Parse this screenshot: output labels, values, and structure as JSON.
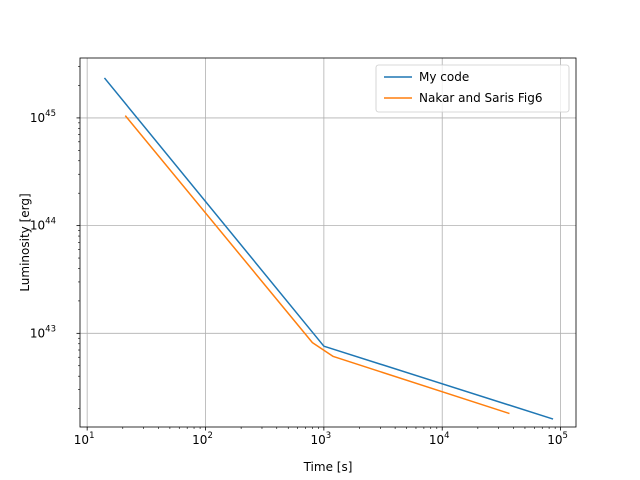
{
  "chart_data": {
    "type": "line",
    "xlabel": "Time [s]",
    "ylabel": "Luminosity [erg]",
    "xscale": "log",
    "yscale": "log",
    "xlim": [
      8.7,
      135000
    ],
    "ylim": [
      1.35e+42,
      3.6e+45
    ],
    "grid": true,
    "legend_position": "top-right",
    "xticks": [
      {
        "value": 10,
        "base": "10",
        "exp": "1"
      },
      {
        "value": 100,
        "base": "10",
        "exp": "2"
      },
      {
        "value": 1000,
        "base": "10",
        "exp": "3"
      },
      {
        "value": 10000,
        "base": "10",
        "exp": "4"
      },
      {
        "value": 100000,
        "base": "10",
        "exp": "5"
      }
    ],
    "yticks": [
      {
        "value": 1e+43,
        "base": "10",
        "exp": "43"
      },
      {
        "value": 1e+44,
        "base": "10",
        "exp": "44"
      },
      {
        "value": 1e+45,
        "base": "10",
        "exp": "45"
      }
    ],
    "series": [
      {
        "name": "My code",
        "color": "#1f77b4",
        "x": [
          14,
          1000,
          86400
        ],
        "y": [
          2.35e+45,
          7.6e+42,
          1.6e+42
        ]
      },
      {
        "name": "Nakar and Saris Fig6",
        "color": "#ff7f0e",
        "x": [
          21,
          800,
          1200,
          37000
        ],
        "y": [
          1.05e+45,
          8.2e+42,
          6.1e+42,
          1.8e+42
        ]
      }
    ]
  }
}
